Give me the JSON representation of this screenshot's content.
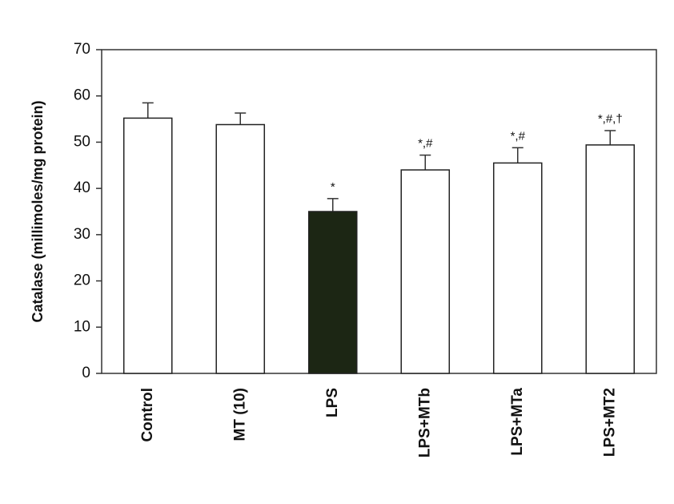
{
  "chart_data": {
    "type": "bar",
    "ylabel": "Catalase (millimoles/mg protein)",
    "categories": [
      "Control",
      "MT (10)",
      "LPS",
      "LPS+MTb",
      "LPS+MTa",
      "LPS+MT2"
    ],
    "values": [
      55.2,
      53.8,
      35.0,
      44.0,
      45.5,
      49.4
    ],
    "errors": [
      3.3,
      2.5,
      2.8,
      3.2,
      3.3,
      3.1
    ],
    "annotations": [
      null,
      null,
      "*",
      "*,#",
      "*,#",
      "*,#,†"
    ],
    "colors": [
      "#ffffff",
      "#ffffff",
      "#1c2614",
      "#ffffff",
      "#ffffff",
      "#ffffff"
    ],
    "ylim": [
      0,
      70
    ],
    "yticks": [
      0,
      10,
      20,
      30,
      40,
      50,
      60,
      70
    ],
    "grid": false
  }
}
